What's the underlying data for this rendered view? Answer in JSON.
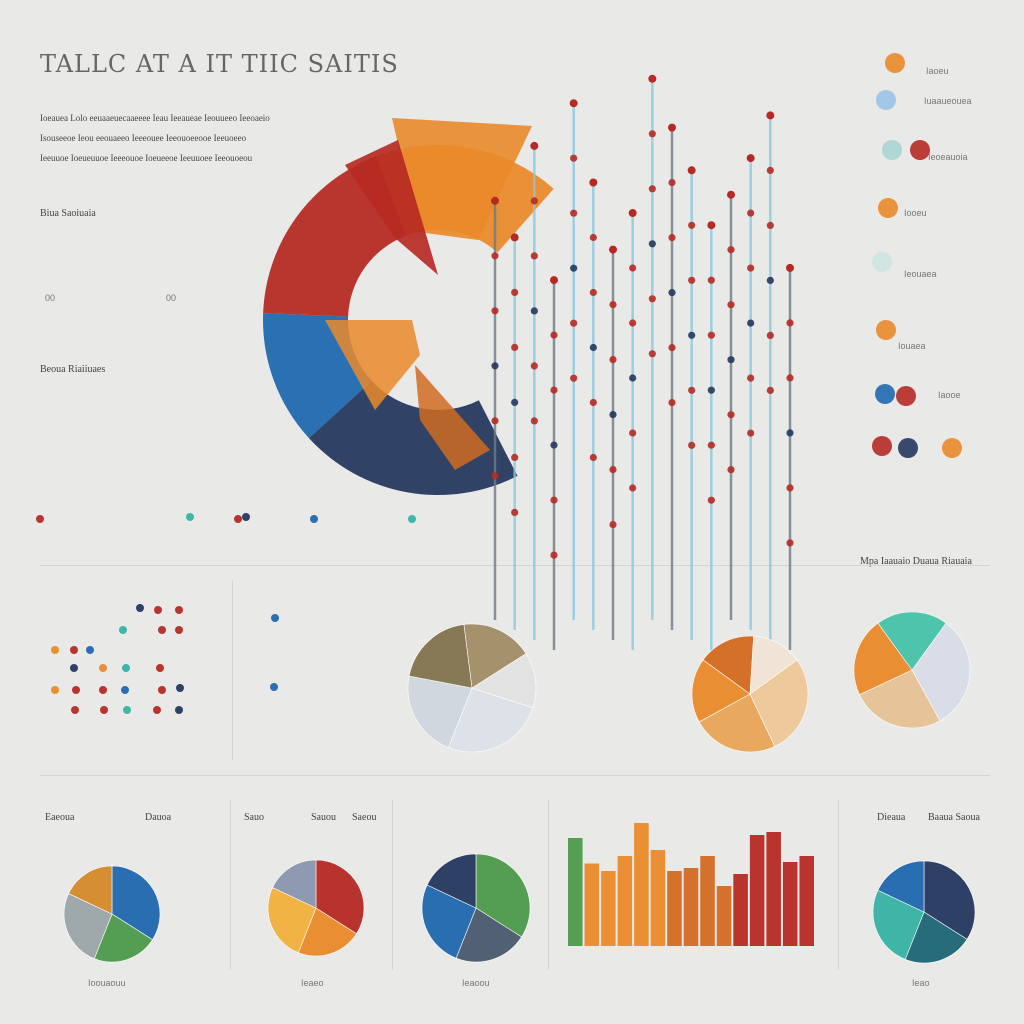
{
  "header": {
    "title": "TALLC AT A IT TIIC SAITIS",
    "paragraph_lines": [
      "Ioeauea Lolo eeuaaeuecaaeeee Ieau Ieeaueae Ieouueeo Ieeoaeio",
      "Isouseeoe Ieou eeouaeeo Ieeeouee Ieeouoeeooe Ieeuoeeo",
      "Ieeuuoe Ioeueuuoe Ieeeouoe Ioeueeoe Ieeuuoee Ieeouoeou"
    ]
  },
  "left_panels": {
    "top_label": "Biua Saoiuaia",
    "mid_label": "Beoua Riaiiuaes",
    "tick_a": "00",
    "tick_b": "00"
  },
  "legend_right": {
    "label": "Mpa Iaauaio Duaua Riauaia",
    "items": [
      "Iaoeu",
      "Iuaaueouea",
      "Ieoeauoia",
      "Iooeu",
      "Ieouaea",
      "Iouaea",
      "Iaooe"
    ]
  },
  "bottom_labels": {
    "headers": [
      "Eaeoua",
      "Dauoa",
      "Sauo",
      "Sauou",
      "Saeou",
      "Dieaua",
      "Baaua Saoua"
    ],
    "footers": [
      "Ioouaouu",
      "Ieaeo",
      "Ieaoou",
      "Ieao"
    ]
  },
  "colors": {
    "navy": "#24385f",
    "blue": "#2068b0",
    "red": "#b62a23",
    "orange": "#ea8a2a",
    "teal": "#35b3a4",
    "green": "#4d9b4c",
    "gray": "#8a8a8a",
    "cyan": "#89c7df"
  },
  "chart_data": [
    {
      "type": "pie",
      "title": "",
      "values": [
        30,
        18,
        27,
        25
      ],
      "labels": [
        "",
        "",
        "",
        ""
      ],
      "note": "Large donut arc upper middle"
    },
    {
      "type": "scatter",
      "title": "",
      "values": [
        72,
        66,
        81,
        59,
        88,
        75,
        64,
        70,
        92,
        84,
        77,
        68,
        73,
        79,
        86,
        61
      ],
      "labels": [
        "",
        "",
        "",
        "",
        "",
        "",
        "",
        "",
        "",
        "",
        "",
        "",
        "",
        "",
        "",
        ""
      ]
    },
    {
      "type": "pie",
      "title": "",
      "values": [
        26,
        22,
        20,
        18,
        14
      ],
      "labels": [
        "",
        "",
        "",
        "",
        ""
      ]
    },
    {
      "type": "pie",
      "title": "",
      "values": [
        28,
        24,
        18,
        16,
        14
      ],
      "labels": [
        "",
        "",
        "",
        "",
        ""
      ]
    },
    {
      "type": "pie",
      "title": "",
      "values": [
        32,
        26,
        22,
        20
      ],
      "labels": [
        "",
        "",
        "",
        ""
      ]
    },
    {
      "type": "bar",
      "title": "",
      "categories": [
        "",
        "",
        "",
        "",
        "",
        "",
        "",
        "",
        "",
        "",
        "",
        "",
        "",
        "",
        ""
      ],
      "values": [
        72,
        55,
        50,
        60,
        82,
        64,
        50,
        52,
        60,
        40,
        48,
        74,
        76,
        56,
        60
      ]
    },
    {
      "type": "pie",
      "title": "",
      "values": [
        34,
        22,
        26,
        18
      ],
      "labels": [
        "",
        "",
        "",
        ""
      ]
    }
  ]
}
